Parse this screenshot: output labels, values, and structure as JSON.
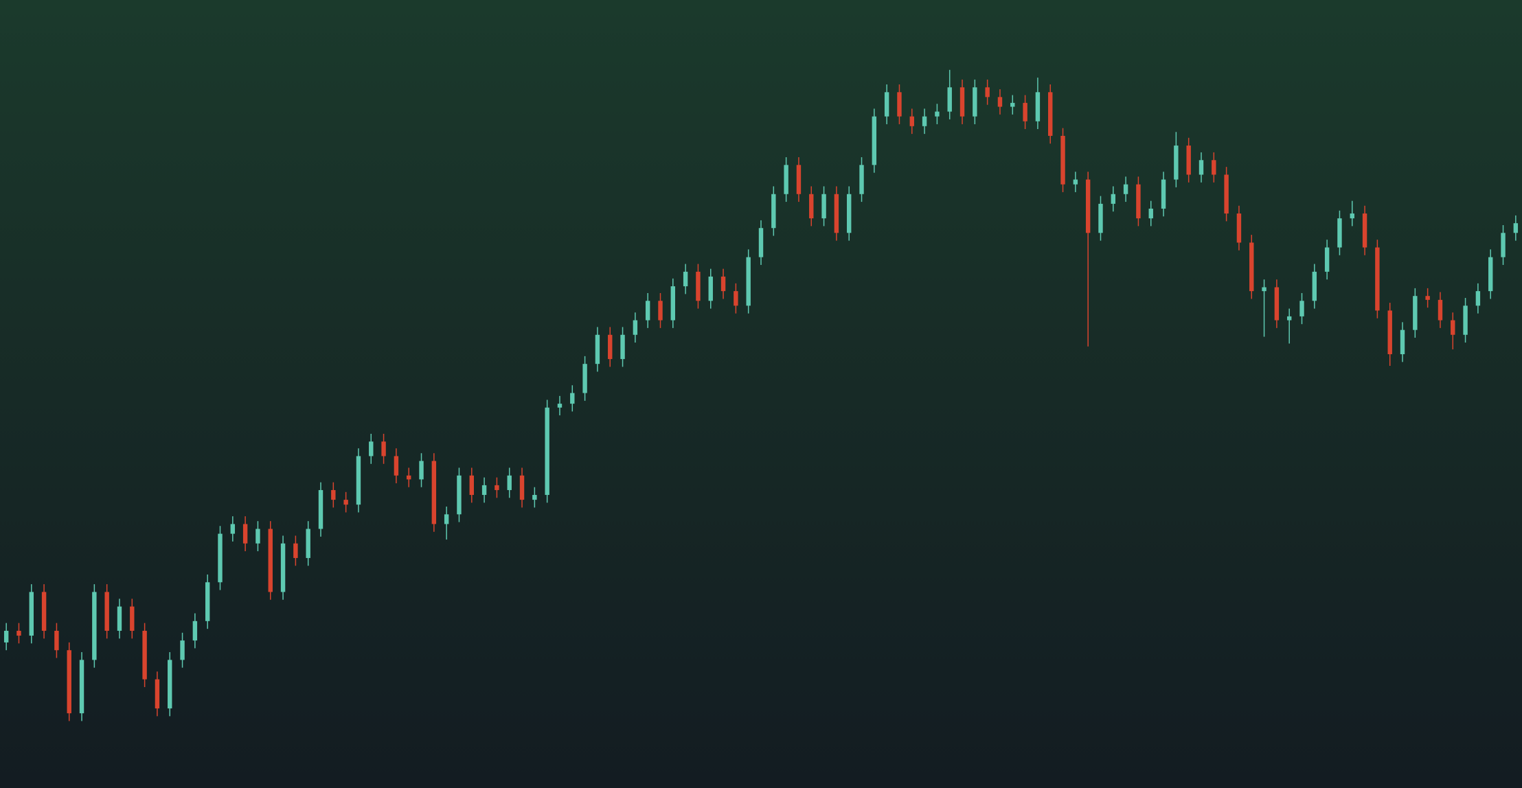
{
  "chart_data": {
    "type": "candlestick",
    "up_color": "#5ec9b1",
    "down_color": "#d9442e",
    "ylim": [
      0,
      812
    ],
    "open": [
      150,
      162,
      157,
      202,
      162,
      142,
      77,
      132,
      202,
      162,
      187,
      162,
      112,
      82,
      132,
      152,
      172,
      212,
      262,
      272,
      252,
      267,
      202,
      252,
      237,
      267,
      307,
      297,
      292,
      342,
      357,
      342,
      322,
      318,
      337,
      272,
      282,
      322,
      302,
      312,
      307,
      322,
      297,
      302,
      392,
      396,
      407,
      437,
      467,
      442,
      467,
      482,
      502,
      482,
      517,
      532,
      502,
      527,
      512,
      497,
      547,
      577,
      612,
      642,
      612,
      587,
      612,
      572,
      612,
      642,
      692,
      717,
      692,
      682,
      692,
      697,
      722,
      692,
      722,
      712,
      702,
      706,
      687,
      717,
      672,
      622,
      627,
      572,
      602,
      612,
      622,
      587,
      597,
      627,
      662,
      632,
      647,
      632,
      592,
      562,
      512,
      516,
      482,
      486,
      502,
      532,
      557,
      587,
      592,
      557,
      492,
      447,
      472,
      507,
      503,
      482,
      467,
      497,
      512,
      547,
      572
    ],
    "high": [
      170,
      170,
      210,
      210,
      170,
      150,
      140,
      210,
      210,
      195,
      195,
      170,
      120,
      140,
      160,
      180,
      220,
      270,
      280,
      280,
      275,
      275,
      260,
      260,
      275,
      315,
      315,
      305,
      350,
      365,
      365,
      350,
      330,
      345,
      345,
      290,
      330,
      330,
      320,
      320,
      330,
      330,
      310,
      400,
      404,
      415,
      445,
      475,
      475,
      475,
      490,
      510,
      510,
      525,
      540,
      540,
      535,
      535,
      520,
      555,
      585,
      620,
      650,
      650,
      620,
      620,
      620,
      620,
      650,
      700,
      725,
      725,
      700,
      700,
      705,
      740,
      730,
      730,
      730,
      720,
      714,
      714,
      732,
      725,
      680,
      635,
      635,
      610,
      620,
      630,
      630,
      605,
      635,
      676,
      670,
      655,
      655,
      640,
      600,
      570,
      524,
      524,
      494,
      510,
      540,
      565,
      595,
      605,
      600,
      565,
      500,
      480,
      515,
      515,
      511,
      490,
      505,
      520,
      555,
      580,
      590
    ],
    "low": [
      142,
      149,
      149,
      154,
      134,
      69,
      69,
      124,
      154,
      154,
      154,
      104,
      74,
      74,
      124,
      144,
      164,
      204,
      254,
      244,
      244,
      194,
      194,
      229,
      229,
      259,
      289,
      284,
      284,
      334,
      334,
      314,
      310,
      310,
      264,
      256,
      274,
      294,
      294,
      299,
      299,
      289,
      289,
      294,
      384,
      388,
      399,
      429,
      434,
      434,
      459,
      474,
      474,
      474,
      509,
      494,
      494,
      504,
      489,
      489,
      539,
      569,
      604,
      604,
      579,
      579,
      564,
      564,
      604,
      634,
      684,
      684,
      674,
      674,
      684,
      689,
      684,
      684,
      704,
      694,
      694,
      679,
      679,
      664,
      614,
      614,
      455,
      564,
      594,
      604,
      579,
      579,
      589,
      619,
      624,
      624,
      624,
      584,
      554,
      504,
      465,
      474,
      458,
      478,
      494,
      524,
      549,
      579,
      549,
      484,
      435,
      439,
      464,
      495,
      474,
      452,
      459,
      489,
      504,
      539,
      564
    ],
    "close": [
      162,
      157,
      202,
      162,
      142,
      77,
      132,
      202,
      162,
      187,
      162,
      112,
      82,
      132,
      152,
      172,
      212,
      262,
      272,
      252,
      267,
      202,
      252,
      237,
      267,
      307,
      297,
      292,
      342,
      357,
      342,
      322,
      318,
      337,
      272,
      282,
      322,
      302,
      312,
      307,
      322,
      297,
      302,
      392,
      396,
      407,
      437,
      467,
      442,
      467,
      482,
      502,
      482,
      517,
      532,
      502,
      527,
      512,
      497,
      547,
      577,
      612,
      642,
      612,
      587,
      612,
      572,
      612,
      642,
      692,
      717,
      692,
      682,
      692,
      697,
      722,
      692,
      722,
      712,
      702,
      706,
      687,
      717,
      672,
      622,
      627,
      572,
      602,
      612,
      622,
      587,
      597,
      627,
      662,
      632,
      647,
      632,
      592,
      562,
      512,
      516,
      482,
      486,
      502,
      532,
      557,
      587,
      592,
      557,
      492,
      447,
      472,
      507,
      503,
      482,
      467,
      497,
      512,
      547,
      572,
      582
    ]
  }
}
